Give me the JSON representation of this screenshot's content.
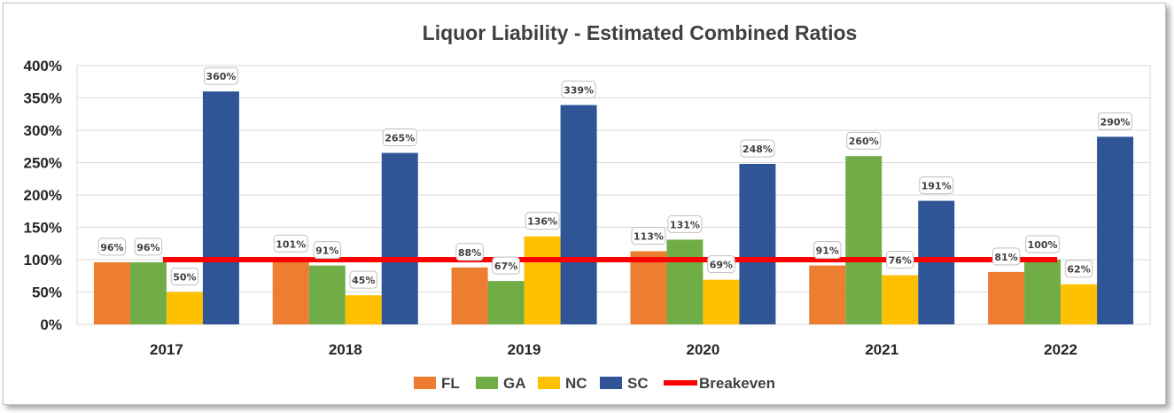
{
  "chart_data": {
    "type": "bar",
    "title": "Liquor Liability - Estimated Combined Ratios",
    "categories": [
      "2017",
      "2018",
      "2019",
      "2020",
      "2021",
      "2022"
    ],
    "series": [
      {
        "name": "FL",
        "color": "#ED7D31",
        "values": [
          96,
          101,
          88,
          113,
          91,
          81
        ]
      },
      {
        "name": "GA",
        "color": "#70AD47",
        "values": [
          96,
          91,
          67,
          131,
          260,
          100
        ]
      },
      {
        "name": "NC",
        "color": "#FFC000",
        "values": [
          50,
          45,
          136,
          69,
          76,
          62
        ]
      },
      {
        "name": "SC",
        "color": "#2F5597",
        "values": [
          360,
          265,
          339,
          248,
          191,
          290
        ]
      }
    ],
    "reference_line": {
      "name": "Breakeven",
      "value": 100,
      "color": "#FF0000"
    },
    "y_axis": {
      "min": 0,
      "max": 400,
      "step": 50,
      "tick_labels": [
        "0%",
        "50%",
        "100%",
        "150%",
        "200%",
        "250%",
        "300%",
        "350%",
        "400%"
      ]
    },
    "value_suffix": "%",
    "grid": true,
    "legend_position": "bottom"
  }
}
